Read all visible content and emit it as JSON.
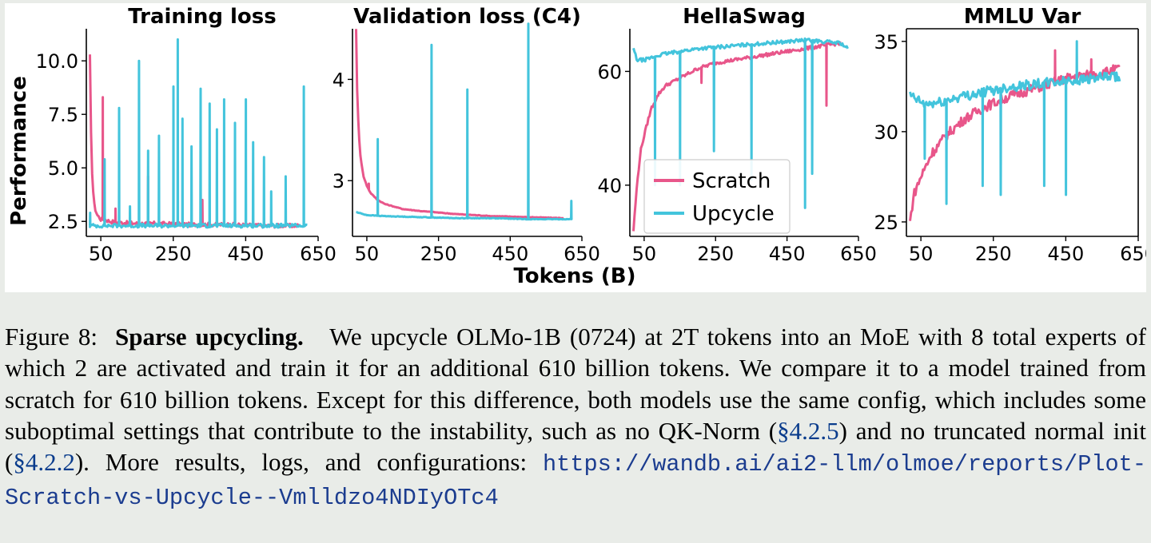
{
  "chart_data": [
    {
      "type": "line",
      "title": "Training loss",
      "ylabel": "Performance",
      "xlim": [
        10,
        650
      ],
      "ylim": [
        1.8,
        11.5
      ],
      "xticks": [
        "50",
        "250",
        "450",
        "650"
      ],
      "yticks": [
        "2.5",
        "5.0",
        "7.5",
        "10.0"
      ],
      "series": [
        {
          "name": "Scratch",
          "color": "#e8568a",
          "x": [
            20,
            22,
            25,
            30,
            35,
            40,
            50,
            60,
            75,
            100,
            150,
            200,
            300,
            400,
            500,
            600
          ],
          "y": [
            10.3,
            7.5,
            5.0,
            3.6,
            3.0,
            2.8,
            2.6,
            2.6,
            2.5,
            2.45,
            2.4,
            2.4,
            2.35,
            2.35,
            2.3,
            2.3
          ],
          "spikes": [
            [
              55,
              8.3
            ],
            [
              90,
              3.1
            ],
            [
              180,
              4.6
            ],
            [
              330,
              3.5
            ]
          ]
        },
        {
          "name": "Upcycle",
          "color": "#43c4dc",
          "x": [
            20,
            100,
            200,
            300,
            400,
            500,
            620
          ],
          "y": [
            2.3,
            2.3,
            2.3,
            2.3,
            2.3,
            2.3,
            2.3
          ],
          "spikes": [
            [
              20,
              2.9
            ],
            [
              60,
              5.4
            ],
            [
              100,
              7.8
            ],
            [
              130,
              3.2
            ],
            [
              155,
              10.0
            ],
            [
              180,
              5.8
            ],
            [
              210,
              6.5
            ],
            [
              250,
              8.8
            ],
            [
              262,
              11.0
            ],
            [
              275,
              7.3
            ],
            [
              300,
              6.0
            ],
            [
              325,
              8.7
            ],
            [
              350,
              8.0
            ],
            [
              370,
              6.8
            ],
            [
              390,
              8.2
            ],
            [
              420,
              7.1
            ],
            [
              450,
              8.2
            ],
            [
              470,
              6.2
            ],
            [
              500,
              5.5
            ],
            [
              520,
              3.9
            ],
            [
              560,
              4.6
            ],
            [
              610,
              8.8
            ]
          ]
        }
      ]
    },
    {
      "type": "line",
      "title": "Validation loss (C4)",
      "xlim": [
        10,
        650
      ],
      "ylim": [
        2.45,
        4.5
      ],
      "xticks": [
        "50",
        "250",
        "450",
        "650"
      ],
      "yticks": [
        "3",
        "4"
      ],
      "series": [
        {
          "name": "Scratch",
          "color": "#e8568a",
          "x": [
            20,
            23,
            27,
            32,
            40,
            50,
            60,
            80,
            100,
            150,
            200,
            300,
            400,
            500,
            600
          ],
          "y": [
            4.5,
            3.9,
            3.5,
            3.25,
            3.05,
            2.95,
            2.88,
            2.81,
            2.77,
            2.72,
            2.7,
            2.67,
            2.65,
            2.64,
            2.63
          ],
          "spikes": [
            [
              55,
              2.97
            ]
          ]
        },
        {
          "name": "Upcycle",
          "color": "#43c4dc",
          "x": [
            20,
            30,
            50,
            100,
            200,
            300,
            400,
            500,
            620
          ],
          "y": [
            2.69,
            2.68,
            2.66,
            2.65,
            2.64,
            2.63,
            2.63,
            2.62,
            2.62
          ],
          "spikes": [
            [
              80,
              3.41
            ],
            [
              230,
              4.34
            ],
            [
              330,
              3.9
            ],
            [
              500,
              4.55
            ],
            [
              620,
              2.8
            ]
          ]
        }
      ]
    },
    {
      "type": "line",
      "title": "HellaSwag",
      "xlim": [
        10,
        650
      ],
      "ylim": [
        31,
        67.5
      ],
      "xticks": [
        "50",
        "250",
        "450",
        "650"
      ],
      "yticks": [
        "40",
        "60"
      ],
      "series": [
        {
          "name": "Scratch",
          "color": "#e8568a",
          "x": [
            20,
            30,
            40,
            55,
            70,
            90,
            110,
            140,
            170,
            200,
            250,
            300,
            350,
            400,
            450,
            500,
            550,
            600
          ],
          "y": [
            32,
            40,
            46,
            50,
            53.5,
            56,
            57.5,
            58.5,
            59.5,
            60.5,
            61.5,
            62,
            62.5,
            63,
            63.5,
            64,
            64.5,
            65
          ],
          "spikes": [
            [
              210,
              58
            ],
            [
              560,
              54
            ],
            [
              600,
              57
            ]
          ]
        },
        {
          "name": "Upcycle",
          "color": "#43c4dc",
          "x": [
            20,
            30,
            50,
            100,
            150,
            200,
            300,
            400,
            500,
            600,
            620
          ],
          "y": [
            64,
            62,
            62,
            63,
            63.5,
            64,
            64.5,
            65,
            65.5,
            65,
            64
          ],
          "spikes": [
            [
              80,
              40
            ],
            [
              150,
              40
            ],
            [
              245,
              46
            ],
            [
              350,
              41
            ],
            [
              500,
              36
            ],
            [
              520,
              42
            ]
          ]
        }
      ]
    },
    {
      "type": "line",
      "title": "MMLU Var",
      "xlim": [
        10,
        650
      ],
      "ylim": [
        24.2,
        35.7
      ],
      "xticks": [
        "50",
        "250",
        "450",
        "650"
      ],
      "yticks": [
        "25",
        "30",
        "35"
      ],
      "series": [
        {
          "name": "Scratch",
          "color": "#e8568a",
          "x": [
            20,
            30,
            50,
            80,
            120,
            170,
            230,
            300,
            380,
            460,
            540,
            600
          ],
          "y": [
            25,
            26.5,
            27.5,
            28.8,
            29.8,
            30.7,
            31.4,
            32,
            32.5,
            33,
            33.2,
            33.5
          ],
          "spikes": [
            [
              420,
              34.5
            ],
            [
              520,
              34
            ]
          ]
        },
        {
          "name": "Upcycle",
          "color": "#43c4dc",
          "x": [
            20,
            60,
            100,
            150,
            200,
            250,
            300,
            350,
            400,
            450,
            500,
            550,
            600
          ],
          "y": [
            32,
            31.5,
            31.6,
            31.9,
            32.1,
            32.3,
            32.5,
            32.6,
            32.7,
            32.8,
            32.9,
            33,
            33
          ],
          "spikes": [
            [
              60,
              28.5
            ],
            [
              120,
              26
            ],
            [
              220,
              27
            ],
            [
              270,
              26.5
            ],
            [
              390,
              27
            ],
            [
              450,
              26.5
            ],
            [
              480,
              35
            ]
          ]
        }
      ]
    }
  ],
  "legend": {
    "scratch": "Scratch",
    "upcycle": "Upcycle"
  },
  "xlabel": "Tokens (B)",
  "caption": {
    "figure_label": "Figure 8:",
    "bold_title": "Sparse upcycling.",
    "text_1": "We upcycle OLMo-1B (0724) at 2T tokens into an MoE with 8 total experts of which 2 are activated and train it for an additional 610 billion tokens. We compare it to a model trained from scratch for 610 billion tokens. Except for this difference, both models use the same config, which includes some suboptimal settings that contribute to the instability, such as no QK-Norm (",
    "ref_1": "§4.2.5",
    "text_2": ") and no truncated normal init (",
    "ref_2": "§4.2.2",
    "text_3": "). More results, logs, and configurations:",
    "url": "https://wandb.ai/ai2-llm/olmoe/reports/Plot-Scratch-vs-Upcycle--Vmlldzo4NDIyOTc4"
  }
}
